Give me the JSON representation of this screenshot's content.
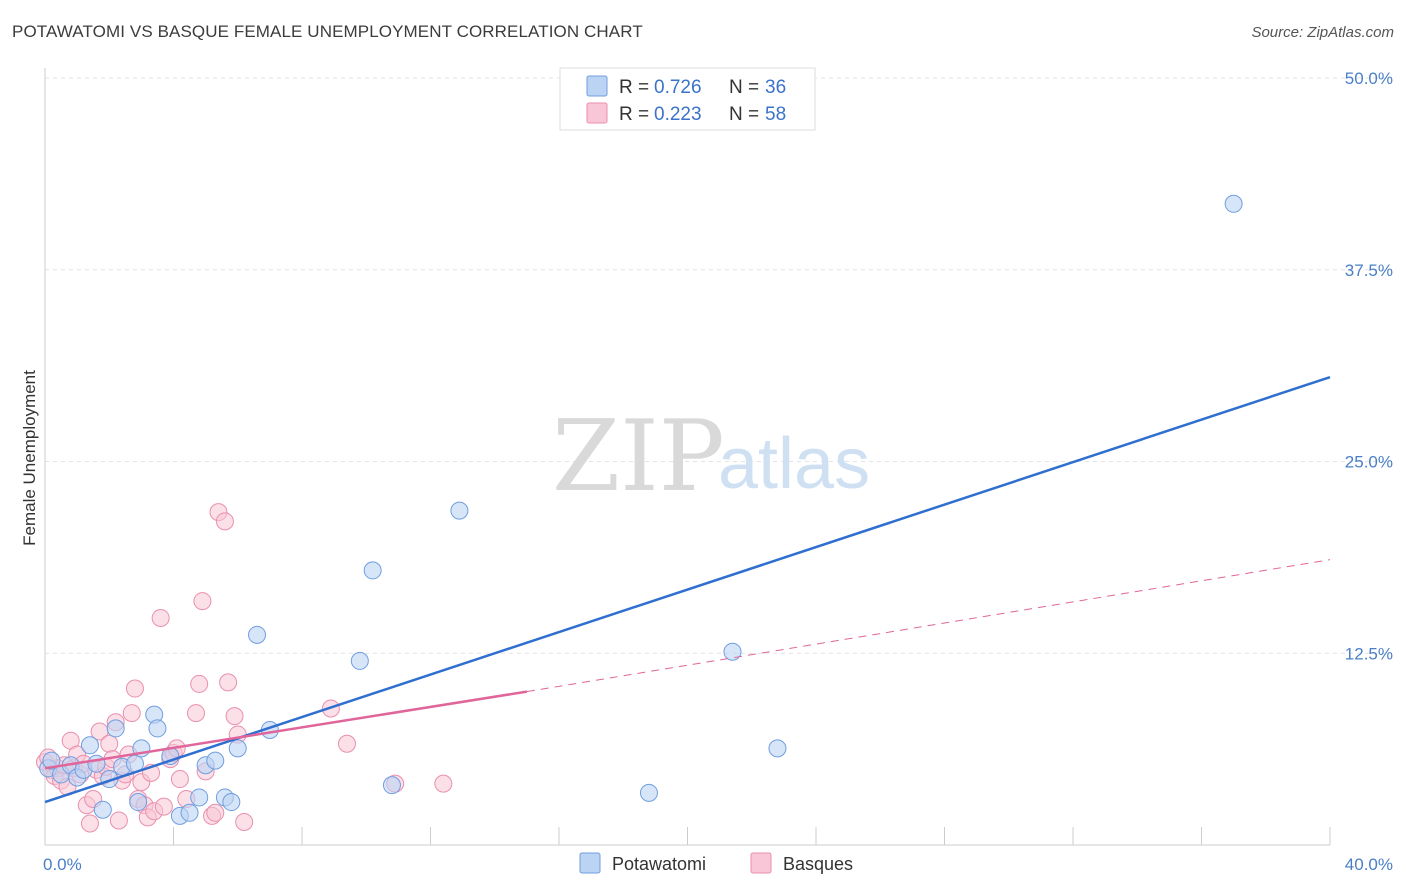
{
  "header": {
    "title": "POTAWATOMI VS BASQUE FEMALE UNEMPLOYMENT CORRELATION CHART",
    "source": "Source: ZipAtlas.com"
  },
  "watermark": {
    "zip": "ZIP",
    "atlas": "atlas"
  },
  "legend": {
    "rows": [
      {
        "r_label": "R = ",
        "r_value": "0.726",
        "n_label": "N = ",
        "n_value": "36",
        "color": "#a8c8f0"
      },
      {
        "r_label": "R = ",
        "r_value": "0.223",
        "n_label": "N = ",
        "n_value": "58",
        "color": "#f6b8cc"
      }
    ]
  },
  "colors": {
    "potawatomi_fill": "#bcd4f4",
    "potawatomi_stroke": "#6f9ee0",
    "potawatomi_line": "#2f6fd0",
    "basques_fill": "#f8c6d6",
    "basques_stroke": "#ea8fae",
    "basques_line": "#e0659a",
    "grid": "#e3e3e3",
    "axis_text": "#4a7fc8"
  },
  "chart_data": {
    "type": "scatter",
    "title": "POTAWATOMI VS BASQUE FEMALE UNEMPLOYMENT CORRELATION CHART",
    "xlabel": "",
    "ylabel": "Female Unemployment",
    "xlim": [
      0,
      40
    ],
    "ylim": [
      0,
      50
    ],
    "x_tick_labels": [
      {
        "value": 0,
        "label": "0.0%"
      },
      {
        "value": 40,
        "label": "40.0%"
      }
    ],
    "y_tick_labels": [
      {
        "value": 12.5,
        "label": "12.5%"
      },
      {
        "value": 25,
        "label": "25.0%"
      },
      {
        "value": 37.5,
        "label": "37.5%"
      },
      {
        "value": 50,
        "label": "50.0%"
      }
    ],
    "legend_position": "top-center",
    "bottom_legend": [
      "Potawatomi",
      "Basques"
    ],
    "series": [
      {
        "name": "Potawatomi",
        "r": 0.726,
        "n": 36,
        "trend": {
          "x": [
            0,
            40
          ],
          "y": [
            2.8,
            30.5
          ],
          "style": "solid"
        },
        "points": [
          [
            0.1,
            5.0
          ],
          [
            0.2,
            5.5
          ],
          [
            0.5,
            4.6
          ],
          [
            0.8,
            5.2
          ],
          [
            1.0,
            4.4
          ],
          [
            1.2,
            4.9
          ],
          [
            1.4,
            6.5
          ],
          [
            1.6,
            5.3
          ],
          [
            2.0,
            4.3
          ],
          [
            2.2,
            7.6
          ],
          [
            2.4,
            5.1
          ],
          [
            2.8,
            5.3
          ],
          [
            3.0,
            6.3
          ],
          [
            3.4,
            8.5
          ],
          [
            3.5,
            7.6
          ],
          [
            3.9,
            5.8
          ],
          [
            4.2,
            1.9
          ],
          [
            4.5,
            2.1
          ],
          [
            4.8,
            3.1
          ],
          [
            5.0,
            5.2
          ],
          [
            5.3,
            5.5
          ],
          [
            5.6,
            3.1
          ],
          [
            5.8,
            2.8
          ],
          [
            6.0,
            6.3
          ],
          [
            6.6,
            13.7
          ],
          [
            7.0,
            7.5
          ],
          [
            9.8,
            12.0
          ],
          [
            10.2,
            17.9
          ],
          [
            10.8,
            3.9
          ],
          [
            12.9,
            21.8
          ],
          [
            18.8,
            3.4
          ],
          [
            21.4,
            12.6
          ],
          [
            22.8,
            6.3
          ],
          [
            37.0,
            41.8
          ],
          [
            2.9,
            2.8
          ],
          [
            1.8,
            2.3
          ]
        ]
      },
      {
        "name": "Basques",
        "r": 0.223,
        "n": 58,
        "trend": {
          "x": [
            0,
            15
          ],
          "y": [
            5.0,
            10.0
          ],
          "style": "solid"
        },
        "trend_extension": {
          "x": [
            15,
            40
          ],
          "y": [
            10.0,
            18.6
          ],
          "style": "dashed"
        },
        "points": [
          [
            0.0,
            5.4
          ],
          [
            0.2,
            4.9
          ],
          [
            0.3,
            4.5
          ],
          [
            0.4,
            5.0
          ],
          [
            0.5,
            4.2
          ],
          [
            0.6,
            5.2
          ],
          [
            0.7,
            3.8
          ],
          [
            0.8,
            6.8
          ],
          [
            0.9,
            5.0
          ],
          [
            1.0,
            5.9
          ],
          [
            1.1,
            4.6
          ],
          [
            1.2,
            5.3
          ],
          [
            1.3,
            2.6
          ],
          [
            1.4,
            1.4
          ],
          [
            1.5,
            3.0
          ],
          [
            1.6,
            4.9
          ],
          [
            1.7,
            7.4
          ],
          [
            1.8,
            4.5
          ],
          [
            1.9,
            5.1
          ],
          [
            2.0,
            6.6
          ],
          [
            2.1,
            5.6
          ],
          [
            2.2,
            8.0
          ],
          [
            2.3,
            1.6
          ],
          [
            2.4,
            4.2
          ],
          [
            2.5,
            4.6
          ],
          [
            2.6,
            5.9
          ],
          [
            2.7,
            8.6
          ],
          [
            2.8,
            10.2
          ],
          [
            2.9,
            3.0
          ],
          [
            3.0,
            4.1
          ],
          [
            3.1,
            2.6
          ],
          [
            3.2,
            1.8
          ],
          [
            3.3,
            4.7
          ],
          [
            3.4,
            2.2
          ],
          [
            3.6,
            14.8
          ],
          [
            3.7,
            2.5
          ],
          [
            3.9,
            5.6
          ],
          [
            4.0,
            6.0
          ],
          [
            4.1,
            6.3
          ],
          [
            4.2,
            4.3
          ],
          [
            4.4,
            3.0
          ],
          [
            4.7,
            8.6
          ],
          [
            4.8,
            10.5
          ],
          [
            4.9,
            15.9
          ],
          [
            5.0,
            4.8
          ],
          [
            5.2,
            1.9
          ],
          [
            5.3,
            2.1
          ],
          [
            5.4,
            21.7
          ],
          [
            5.6,
            21.1
          ],
          [
            5.7,
            10.6
          ],
          [
            5.9,
            8.4
          ],
          [
            6.0,
            7.2
          ],
          [
            6.2,
            1.5
          ],
          [
            8.9,
            8.9
          ],
          [
            9.4,
            6.6
          ],
          [
            10.9,
            4.0
          ],
          [
            12.4,
            4.0
          ],
          [
            0.1,
            5.7
          ]
        ]
      }
    ]
  }
}
